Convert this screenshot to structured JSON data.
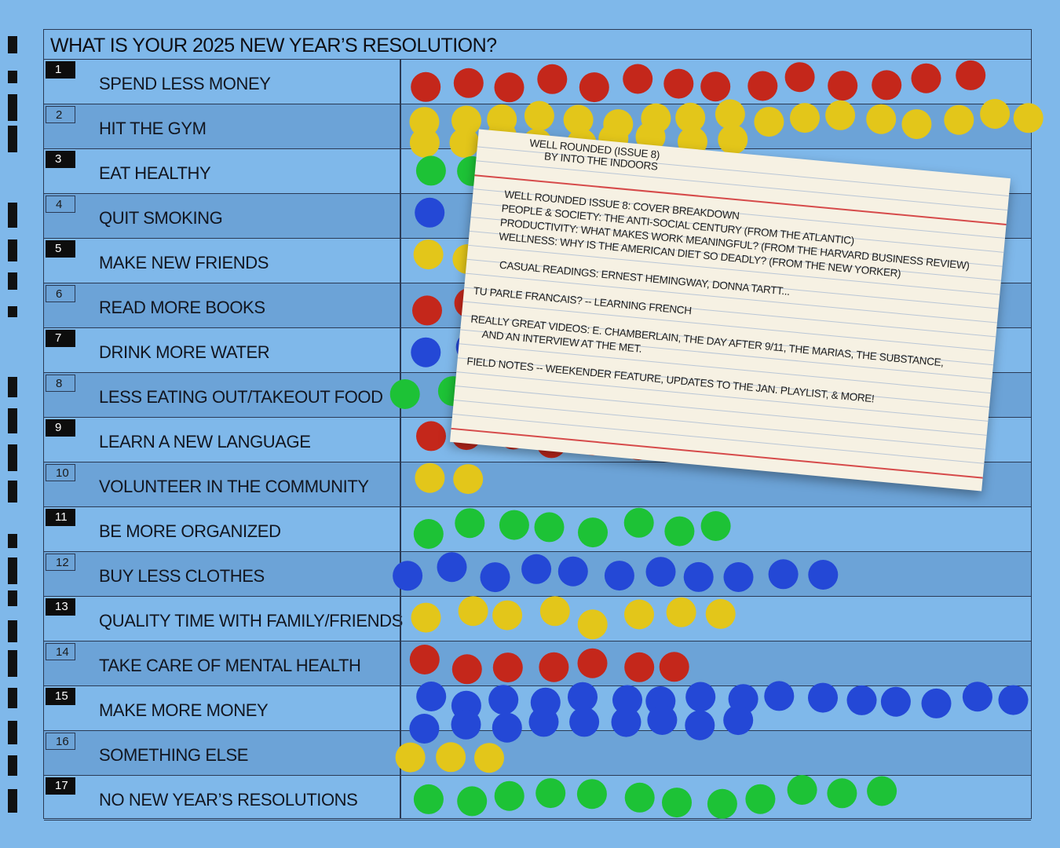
{
  "title": "WHAT IS YOUR 2025 NEW YEAR’S RESOLUTION?",
  "colors": {
    "background": "#7fb8ea",
    "red": "#c4271b",
    "yellow": "#e3c61a",
    "green": "#1dc236",
    "blue": "#2448d6"
  },
  "rows": [
    {
      "num": "1",
      "label": "SPEND LESS MONEY",
      "color": "red",
      "dark_num": true,
      "shaded": false,
      "dot_count": 14
    },
    {
      "num": "2",
      "label": "HIT THE GYM",
      "color": "yellow",
      "dark_num": false,
      "shaded": true,
      "dot_count": 26
    },
    {
      "num": "3",
      "label": "EAT HEALTHY",
      "color": "green",
      "dark_num": true,
      "shaded": false,
      "dot_count": 3
    },
    {
      "num": "4",
      "label": "QUIT SMOKING",
      "color": "blue",
      "dark_num": false,
      "shaded": true,
      "dot_count": 1
    },
    {
      "num": "5",
      "label": "MAKE NEW FRIENDS",
      "color": "yellow",
      "dark_num": true,
      "shaded": false,
      "dot_count": 2
    },
    {
      "num": "6",
      "label": "READ MORE BOOKS",
      "color": "red",
      "dark_num": false,
      "shaded": true,
      "dot_count": 14
    },
    {
      "num": "7",
      "label": "DRINK MORE WATER",
      "color": "blue",
      "dark_num": true,
      "shaded": false,
      "dot_count": 2
    },
    {
      "num": "8",
      "label": "LESS EATING OUT/TAKEOUT FOOD",
      "color": "green",
      "dark_num": false,
      "shaded": true,
      "dot_count": 7
    },
    {
      "num": "9",
      "label": "LEARN A NEW LANGUAGE",
      "color": "red",
      "dark_num": true,
      "shaded": false,
      "dot_count": 6
    },
    {
      "num": "10",
      "label": "VOLUNTEER IN THE COMMUNITY",
      "color": "yellow",
      "dark_num": false,
      "shaded": true,
      "dot_count": 2
    },
    {
      "num": "11",
      "label": "BE MORE ORGANIZED",
      "color": "green",
      "dark_num": true,
      "shaded": false,
      "dot_count": 8
    },
    {
      "num": "12",
      "label": "BUY LESS CLOTHES",
      "color": "blue",
      "dark_num": false,
      "shaded": true,
      "dot_count": 11
    },
    {
      "num": "13",
      "label": "QUALITY TIME WITH FAMILY/FRIENDS",
      "color": "yellow",
      "dark_num": true,
      "shaded": false,
      "dot_count": 8
    },
    {
      "num": "14",
      "label": "TAKE CARE OF MENTAL HEALTH",
      "color": "red",
      "dark_num": false,
      "shaded": true,
      "dot_count": 7
    },
    {
      "num": "15",
      "label": "MAKE MORE MONEY",
      "color": "blue",
      "dark_num": true,
      "shaded": false,
      "dot_count": 25
    },
    {
      "num": "16",
      "label": "SOMETHING ELSE",
      "color": "yellow",
      "dark_num": false,
      "shaded": true,
      "dot_count": 3
    },
    {
      "num": "17",
      "label": "NO NEW YEAR’S RESOLUTIONS",
      "color": "green",
      "dark_num": true,
      "shaded": false,
      "dot_count": 12
    }
  ],
  "card": {
    "lines": [
      "WELL ROUNDED (ISSUE 8)",
      "BY INTO THE INDOORS",
      "WELL ROUNDED ISSUE 8: COVER BREAKDOWN",
      "PEOPLE & SOCIETY: THE ANTI-SOCIAL CENTURY   (FROM THE ATLANTIC)",
      "PRODUCTIVITY: WHAT MAKES WORK MEANINGFUL?  (FROM THE HARVARD BUSINESS REVIEW)",
      "WELLNESS: WHY IS THE AMERICAN DIET SO DEADLY?  (FROM THE NEW YORKER)",
      "CASUAL READINGS: ERNEST HEMINGWAY, DONNA TARTT...",
      "TU PARLE FRANCAIS? -- LEARNING FRENCH",
      "REALLY GREAT VIDEOS: E. CHAMBERLAIN, THE DAY AFTER 9/11, THE MARIAS, THE SUBSTANCE,",
      "AND AN INTERVIEW AT THE MET.",
      "FIELD NOTES -- WEEKENDER FEATURE, UPDATES TO THE JAN. PLAYLIST, & MORE!"
    ]
  }
}
